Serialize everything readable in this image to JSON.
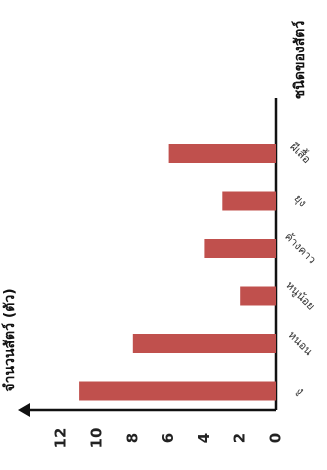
{
  "chart_data": {
    "type": "bar",
    "orientation": "horizontal",
    "title": "",
    "xlabel": "ชนิดของสัตว์",
    "ylabel": "จำนวนสัตว์ (ตัว)",
    "categories": [
      "งู",
      "หนอน",
      "หนูน้อย",
      "ค้างคาว",
      "ยุง",
      "ผีเสื้อ"
    ],
    "values": [
      11,
      8,
      2,
      4,
      3,
      6
    ],
    "ylim": [
      0,
      12
    ],
    "ticks": [
      "0",
      "2",
      "4",
      "6",
      "8",
      "10",
      "12"
    ],
    "grid": false,
    "colors": {
      "bar": "#c0504d",
      "axis": "#111111"
    }
  }
}
